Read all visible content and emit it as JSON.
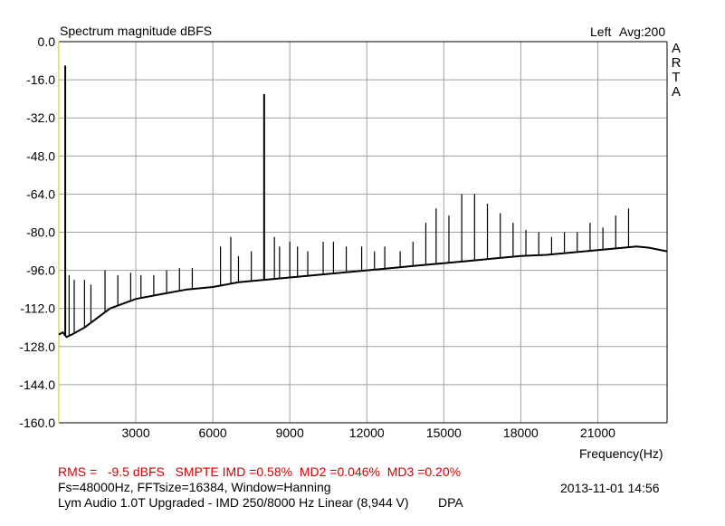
{
  "header": {
    "title": "Spectrum magnitude dBFS",
    "channel": "Left",
    "averaging": "Avg:200",
    "brand": [
      "A",
      "R",
      "T",
      "A"
    ]
  },
  "footer": {
    "measurements": "RMS =   -9.5 dBFS   SMPTE IMD =0.58%  MD2 =0.046%  MD3 =0.20%",
    "settings": "Fs=48000Hz, FFTsize=16384, Window=Hanning",
    "datetime": "2013-11-01  14:56",
    "device": "Lym Audio 1.0T Upgraded - IMD 250/8000 Hz Linear (8,944 V)",
    "tag": "DPA"
  },
  "colors": {
    "grid": "#a0a0a0",
    "axis": "#000000",
    "trace": "#000000",
    "frame_left": "#c8c800",
    "measurement_text": "#d40000"
  },
  "chart_data": {
    "type": "line",
    "title": "Spectrum magnitude dBFS",
    "xlabel": "Frequency(Hz)",
    "ylabel": "",
    "xlim": [
      0,
      23700
    ],
    "ylim": [
      -160,
      0
    ],
    "x_scale": "linear",
    "grid": true,
    "x_ticks": [
      3000,
      6000,
      9000,
      12000,
      15000,
      18000,
      21000
    ],
    "y_ticks": [
      0,
      -16,
      -32,
      -48,
      -64,
      -80,
      -96,
      -112,
      -128,
      -144,
      -160
    ],
    "x_tick_labels": [
      "3000",
      "6000",
      "9000",
      "12000",
      "15000",
      "18000",
      "21000"
    ],
    "y_tick_labels": [
      "0.0",
      "-16.0",
      "-32.0",
      "-48.0",
      "-64.0",
      "-80.0",
      "-96.0",
      "-112.0",
      "-128.0",
      "-144.0",
      "-160.0"
    ],
    "noise_floor": {
      "x": [
        0,
        150,
        300,
        500,
        1000,
        1500,
        2000,
        3000,
        4000,
        5000,
        6000,
        7000,
        8000,
        9000,
        10000,
        11000,
        12000,
        13000,
        14000,
        15000,
        16000,
        17000,
        18000,
        19000,
        20000,
        21000,
        22000,
        22500,
        23000,
        23700
      ],
      "y": [
        -123,
        -122,
        -124,
        -123,
        -120,
        -116,
        -112,
        -108,
        -106,
        -104,
        -103,
        -101,
        -100,
        -99,
        -98,
        -97,
        -96,
        -95,
        -94,
        -93,
        -92,
        -91,
        -90,
        -89.5,
        -88.5,
        -87.5,
        -86.5,
        -86,
        -86.5,
        -88
      ]
    },
    "peaks": {
      "freq": [
        250,
        8000,
        400,
        600,
        1000,
        1250,
        1800,
        2300,
        2800,
        3200,
        3700,
        4200,
        4700,
        5200,
        6300,
        6700,
        7000,
        7500,
        8400,
        8600,
        9000,
        9300,
        9700,
        10300,
        10700,
        11200,
        11800,
        12300,
        12700,
        13300,
        13800,
        14300,
        14700,
        15200,
        15700,
        16200,
        16700,
        17200,
        17700,
        18200,
        18700,
        19200,
        19700,
        20200,
        20700,
        21200,
        21700,
        22200
      ],
      "level": [
        -10,
        -22,
        -98,
        -100,
        -100,
        -102,
        -96,
        -98,
        -97,
        -98,
        -98,
        -96,
        -95,
        -95,
        -86,
        -82,
        -90,
        -88,
        -82,
        -86,
        -84,
        -86,
        -88,
        -84,
        -84,
        -86,
        -86,
        -88,
        -86,
        -88,
        -84,
        -76,
        -70,
        -73,
        -64,
        -64,
        -68,
        -72,
        -76,
        -79,
        -80,
        -82,
        -80,
        -80,
        -76,
        -78,
        -73,
        -70
      ]
    }
  }
}
